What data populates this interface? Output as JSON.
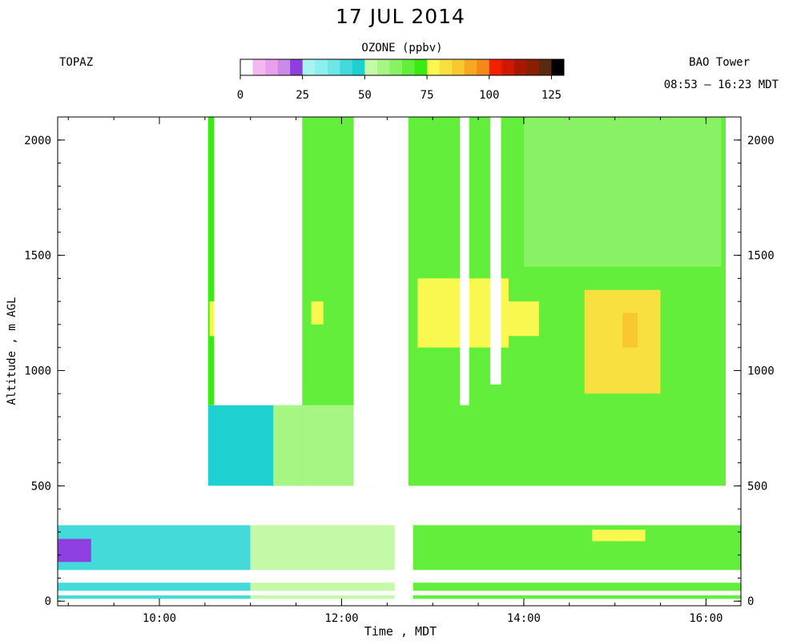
{
  "chart_data": {
    "type": "heatmap",
    "title": "17 JUL 2014",
    "station_label": "TOPAZ",
    "site_label": "BAO Tower",
    "time_range": "08:53 – 16:23 MDT",
    "colorbar": {
      "title": "OZONE (ppbv)",
      "ticks": [
        0,
        25,
        50,
        75,
        100,
        125
      ],
      "range": [
        0,
        130
      ],
      "bins": [
        {
          "lo": 0,
          "hi": 5,
          "color": "#ffffff"
        },
        {
          "lo": 5,
          "hi": 10,
          "color": "#f4b8f0"
        },
        {
          "lo": 10,
          "hi": 15,
          "color": "#e9a0ec"
        },
        {
          "lo": 15,
          "hi": 20,
          "color": "#c98be8"
        },
        {
          "lo": 20,
          "hi": 25,
          "color": "#8f3fe0"
        },
        {
          "lo": 25,
          "hi": 30,
          "color": "#a8f4f0"
        },
        {
          "lo": 30,
          "hi": 35,
          "color": "#8ef0ee"
        },
        {
          "lo": 35,
          "hi": 40,
          "color": "#6ee6e6"
        },
        {
          "lo": 40,
          "hi": 45,
          "color": "#44dada"
        },
        {
          "lo": 45,
          "hi": 50,
          "color": "#1fd0d0"
        },
        {
          "lo": 50,
          "hi": 55,
          "color": "#c4f9a8"
        },
        {
          "lo": 55,
          "hi": 60,
          "color": "#a6f684"
        },
        {
          "lo": 60,
          "hi": 65,
          "color": "#88f264"
        },
        {
          "lo": 65,
          "hi": 70,
          "color": "#62ee3a"
        },
        {
          "lo": 70,
          "hi": 75,
          "color": "#3aea12"
        },
        {
          "lo": 75,
          "hi": 80,
          "color": "#f8f850"
        },
        {
          "lo": 80,
          "hi": 85,
          "color": "#f8e040"
        },
        {
          "lo": 85,
          "hi": 90,
          "color": "#f8c830"
        },
        {
          "lo": 90,
          "hi": 95,
          "color": "#f8a820"
        },
        {
          "lo": 95,
          "hi": 100,
          "color": "#f48818"
        },
        {
          "lo": 100,
          "hi": 105,
          "color": "#f02000"
        },
        {
          "lo": 105,
          "hi": 110,
          "color": "#d01800"
        },
        {
          "lo": 110,
          "hi": 115,
          "color": "#a81800"
        },
        {
          "lo": 115,
          "hi": 120,
          "color": "#882000"
        },
        {
          "lo": 120,
          "hi": 125,
          "color": "#5a2a10"
        },
        {
          "lo": 125,
          "hi": 130,
          "color": "#000000"
        }
      ]
    },
    "xlabel": "Time , MDT",
    "ylabel": "Altitude , m AGL",
    "x_ticks": [
      "10:00",
      "12:00",
      "14:00",
      "16:00"
    ],
    "x_range": [
      "08:53",
      "16:23"
    ],
    "y_ticks": [
      0,
      500,
      1000,
      1500,
      2000
    ],
    "y_range": [
      -20,
      2100
    ],
    "regions": [
      {
        "t0": "10:32",
        "t1": "11:34",
        "z0": 500,
        "z1": 850,
        "o3": 47
      },
      {
        "t0": "10:32",
        "t1": "10:36",
        "z0": 850,
        "z1": 2100,
        "o3": 70
      },
      {
        "t0": "10:33",
        "t1": "10:36",
        "z0": 1150,
        "z1": 1300,
        "o3": 78
      },
      {
        "t0": "11:15",
        "t1": "11:34",
        "z0": 500,
        "z1": 940,
        "o3": 55
      },
      {
        "t0": "11:34",
        "t1": "12:25",
        "z0": 500,
        "z1": 2100,
        "o3": 68
      },
      {
        "t0": "11:34",
        "t1": "12:25",
        "z0": 500,
        "z1": 850,
        "o3": 55
      },
      {
        "t0": "11:40",
        "t1": "11:48",
        "z0": 1200,
        "z1": 1300,
        "o3": 78
      },
      {
        "t0": "12:44",
        "t1": "16:13",
        "z0": 500,
        "z1": 2100,
        "o3": 68
      },
      {
        "t0": "12:50",
        "t1": "13:50",
        "z0": 1100,
        "z1": 1400,
        "o3": 78
      },
      {
        "t0": "13:40",
        "t1": "14:10",
        "z0": 1150,
        "z1": 1300,
        "o3": 77
      },
      {
        "t0": "14:40",
        "t1": "15:30",
        "z0": 900,
        "z1": 1350,
        "o3": 80
      },
      {
        "t0": "15:05",
        "t1": "15:15",
        "z0": 1100,
        "z1": 1250,
        "o3": 85
      },
      {
        "t0": "14:00",
        "t1": "16:10",
        "z0": 1450,
        "z1": 2100,
        "o3": 60
      },
      {
        "t0": "08:53",
        "t1": "11:00",
        "z0": 10,
        "z1": 330,
        "o3": 40
      },
      {
        "t0": "11:00",
        "t1": "12:35",
        "z0": 10,
        "z1": 330,
        "o3": 50
      },
      {
        "t0": "08:53",
        "t1": "09:15",
        "z0": 170,
        "z1": 270,
        "o3": 22
      },
      {
        "t0": "12:47",
        "t1": "16:23",
        "z0": 10,
        "z1": 330,
        "o3": 68
      },
      {
        "t0": "14:45",
        "t1": "15:20",
        "z0": 260,
        "z1": 310,
        "o3": 78
      }
    ],
    "gaps": [
      {
        "t0": "10:36",
        "t1": "11:34",
        "z0": 850,
        "z1": 2100
      },
      {
        "t0": "12:08",
        "t1": "12:35",
        "z0": 500,
        "z1": 2100
      },
      {
        "t0": "13:18",
        "t1": "13:24",
        "z0": 850,
        "z1": 2100
      },
      {
        "t0": "13:38",
        "t1": "13:45",
        "z0": 940,
        "z1": 2100
      },
      {
        "t0": "12:35",
        "t1": "12:47",
        "z0": 10,
        "z1": 330
      },
      {
        "t0": "08:53",
        "t1": "16:23",
        "z0": 330,
        "z1": 500
      },
      {
        "t0": "08:53",
        "t1": "16:23",
        "z0": 135,
        "z1": 80
      },
      {
        "t0": "08:53",
        "t1": "16:23",
        "z0": 45,
        "z1": 25
      },
      {
        "t0": "08:53",
        "t1": "10:32",
        "z0": 500,
        "z1": 2100
      },
      {
        "t0": "16:13",
        "t1": "16:23",
        "z0": 500,
        "z1": 2100
      }
    ]
  }
}
